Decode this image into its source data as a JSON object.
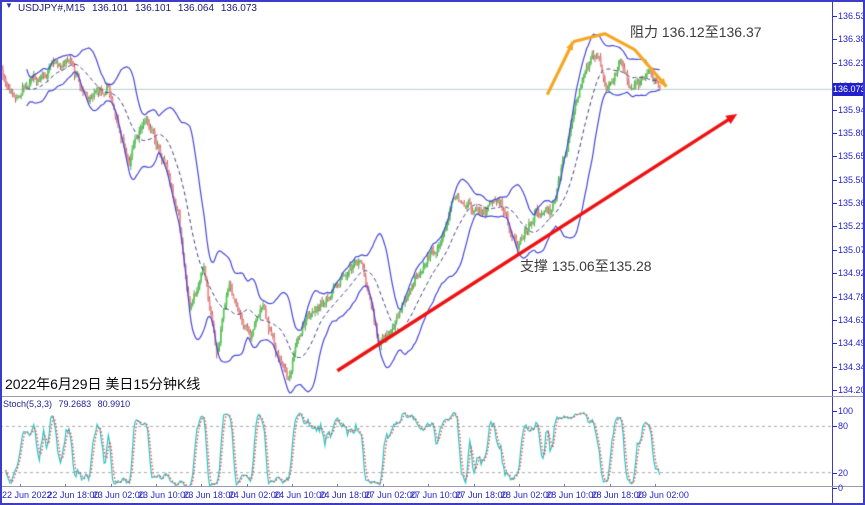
{
  "window": {
    "collapse_arrow": "▼",
    "header": {
      "symbol": "USDJPY#,M15",
      "open": "136.101",
      "high": "136.101",
      "low": "136.064",
      "close": "136.073"
    }
  },
  "annotations": {
    "resistance": "阻力 136.12至136.37",
    "support": "支撑 135.06至135.28",
    "date_label": "2022年6月29日 美日15分钟K线"
  },
  "price_badge": "136.073",
  "stoch": {
    "label": "Stoch(5,3,3)",
    "k_value": "79.2683",
    "d_value": "80.9910",
    "axis_labels": [
      "100",
      "80",
      "20",
      "0"
    ]
  },
  "colors": {
    "up_candle": "#55cc55",
    "up_wick": "#2b8f2b",
    "down_candle": "#f09090",
    "down_wick": "#b23a3a",
    "band": "#4848da",
    "band_mid": "#404080",
    "bid_line": "#b4cfcf",
    "trend_arrow": "#ee1111",
    "resistance_arc": "#f5a623",
    "stoch_k": "#2ec4c4",
    "stoch_d": "#e05555",
    "stoch_level": "#aaaaaa",
    "axis_text": "#2525c8",
    "badge_bg": "#2121cc",
    "frame": "#3c3cc8"
  },
  "chart_data": {
    "type": "candlestick",
    "symbol": "USDJPY#",
    "timeframe": "M15",
    "current_ohlc": {
      "open": 136.101,
      "high": 136.101,
      "low": 136.064,
      "close": 136.073
    },
    "last_price": 136.073,
    "y_range": [
      134.2,
      136.53
    ],
    "y_tick_labels": [
      "136.530",
      "136.385",
      "136.235",
      "136.090",
      "135.945",
      "135.800",
      "135.655",
      "135.505",
      "135.360",
      "135.215",
      "135.070",
      "134.925",
      "134.780",
      "134.635",
      "134.490",
      "134.345",
      "134.200"
    ],
    "x_labels": [
      "22 Jun 2022",
      "22 Jun 18:00",
      "23 Jun 02:00",
      "23 Jun 10:00",
      "23 Jun 18:00",
      "24 Jun 02:00",
      "24 Jun 10:00",
      "24 Jun 18:00",
      "27 Jun 02:00",
      "27 Jun 10:00",
      "27 Jun 18:00",
      "28 Jun 02:00",
      "28 Jun 10:00",
      "28 Jun 18:00",
      "29 Jun 02:00"
    ],
    "grid": false,
    "legend": false,
    "candle_count": 470,
    "data_end_fraction": 0.792,
    "price_path_anchors": [
      [
        0.0,
        136.2
      ],
      [
        0.015,
        136.04
      ],
      [
        0.045,
        136.15
      ],
      [
        0.08,
        136.27
      ],
      [
        0.105,
        136.0
      ],
      [
        0.13,
        136.1
      ],
      [
        0.155,
        135.62
      ],
      [
        0.175,
        135.9
      ],
      [
        0.2,
        135.58
      ],
      [
        0.215,
        135.28
      ],
      [
        0.228,
        134.7
      ],
      [
        0.245,
        134.95
      ],
      [
        0.26,
        134.42
      ],
      [
        0.275,
        134.85
      ],
      [
        0.3,
        134.52
      ],
      [
        0.315,
        134.72
      ],
      [
        0.33,
        134.45
      ],
      [
        0.345,
        134.28
      ],
      [
        0.365,
        134.62
      ],
      [
        0.39,
        134.75
      ],
      [
        0.415,
        134.95
      ],
      [
        0.435,
        134.98
      ],
      [
        0.455,
        134.48
      ],
      [
        0.475,
        134.62
      ],
      [
        0.5,
        134.92
      ],
      [
        0.525,
        135.1
      ],
      [
        0.548,
        135.42
      ],
      [
        0.575,
        135.28
      ],
      [
        0.6,
        135.38
      ],
      [
        0.62,
        135.08
      ],
      [
        0.645,
        135.32
      ],
      [
        0.662,
        135.3
      ],
      [
        0.68,
        135.7
      ],
      [
        0.7,
        136.18
      ],
      [
        0.715,
        136.3
      ],
      [
        0.73,
        136.08
      ],
      [
        0.745,
        136.26
      ],
      [
        0.76,
        136.05
      ],
      [
        0.775,
        136.18
      ],
      [
        0.792,
        136.07
      ]
    ],
    "indicators": {
      "bollinger_bands": {
        "period": 20,
        "deviation": 2
      },
      "stochastic": {
        "k": 5,
        "d": 3,
        "slowing": 3,
        "last_k": 79.2683,
        "last_d": 80.991,
        "levels": [
          80,
          20
        ],
        "range": [
          0,
          100
        ]
      }
    },
    "levels": {
      "resistance": [
        136.12,
        136.37
      ],
      "support": [
        135.06,
        135.28
      ]
    },
    "drawings": {
      "trend_line": {
        "type": "arrow",
        "from": [
          0.405,
          134.32
        ],
        "to": [
          0.885,
          135.92
        ]
      },
      "resistance_arc": {
        "type": "arrow-polyline",
        "segments": [
          [
            [
              0.657,
              136.04
            ],
            [
              0.688,
              136.37
            ]
          ],
          [
            [
              0.688,
              136.37
            ],
            [
              0.726,
              136.42
            ],
            [
              0.762,
              136.32
            ],
            [
              0.8,
              136.09
            ]
          ]
        ]
      }
    }
  }
}
